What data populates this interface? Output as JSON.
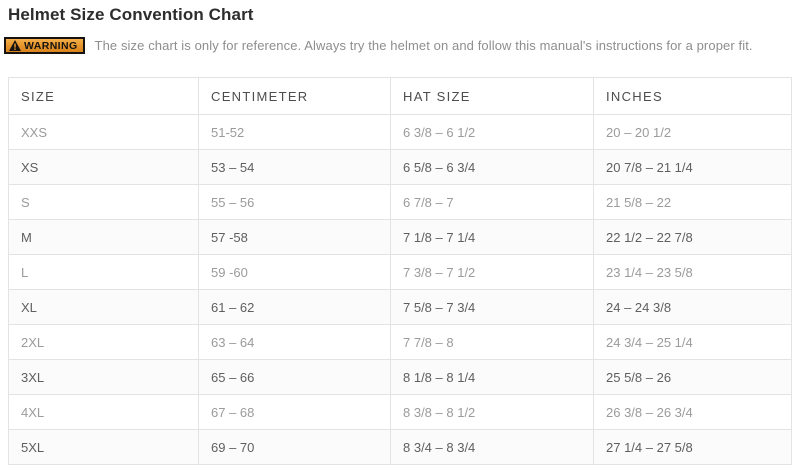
{
  "page": {
    "title": "Helmet Size Convention Chart"
  },
  "warning": {
    "badge_label": "WARNING",
    "badge_icon": "warning-triangle-icon",
    "text": "The size chart is only for reference. Always try the helmet on and follow this manual's instructions for a proper fit."
  },
  "size_table": {
    "columns": [
      "SIZE",
      "CENTIMETER",
      "HAT SIZE",
      "INCHES"
    ],
    "rows": [
      [
        "XXS",
        "51-52",
        "6 3/8 – 6 1/2",
        "20 – 20 1/2"
      ],
      [
        "XS",
        "53 – 54",
        "6 5/8 – 6 3/4",
        "20 7/8 – 21 1/4"
      ],
      [
        "S",
        "55 – 56",
        "6 7/8 – 7",
        "21 5/8 – 22"
      ],
      [
        "M",
        "57 -58",
        "7 1/8 – 7 1/4",
        "22 1/2 – 22 7/8"
      ],
      [
        "L",
        "59 -60",
        "7 3/8 – 7 1/2",
        "23 1/4 – 23 5/8"
      ],
      [
        "XL",
        "61 – 62",
        "7 5/8 – 7 3/4",
        "24 – 24 3/8"
      ],
      [
        "2XL",
        "63 – 64",
        "7 7/8 – 8",
        "24 3/4 – 25 1/4"
      ],
      [
        "3XL",
        "65 – 66",
        "8 1/8 – 8 1/4",
        "25 5/8 – 26"
      ],
      [
        "4XL",
        "67 – 68",
        "8 3/8 – 8 1/2",
        "26 3/8 – 26 3/4"
      ],
      [
        "5XL",
        "69 – 70",
        "8 3/4 – 8 3/4",
        "27 1/4 – 27 5/8"
      ]
    ]
  },
  "colors": {
    "title_text": "#2d2d2d",
    "warning_badge_bg": "#e8982e",
    "warning_badge_border": "#151210",
    "warning_text": "#8e8e8e",
    "table_border": "#e3e3e3",
    "header_text": "#4d4d4d",
    "row_text_light": "#9b9b9b",
    "row_text_dark": "#5f5f5f",
    "row_bg_tint": "#fbfbfb"
  }
}
